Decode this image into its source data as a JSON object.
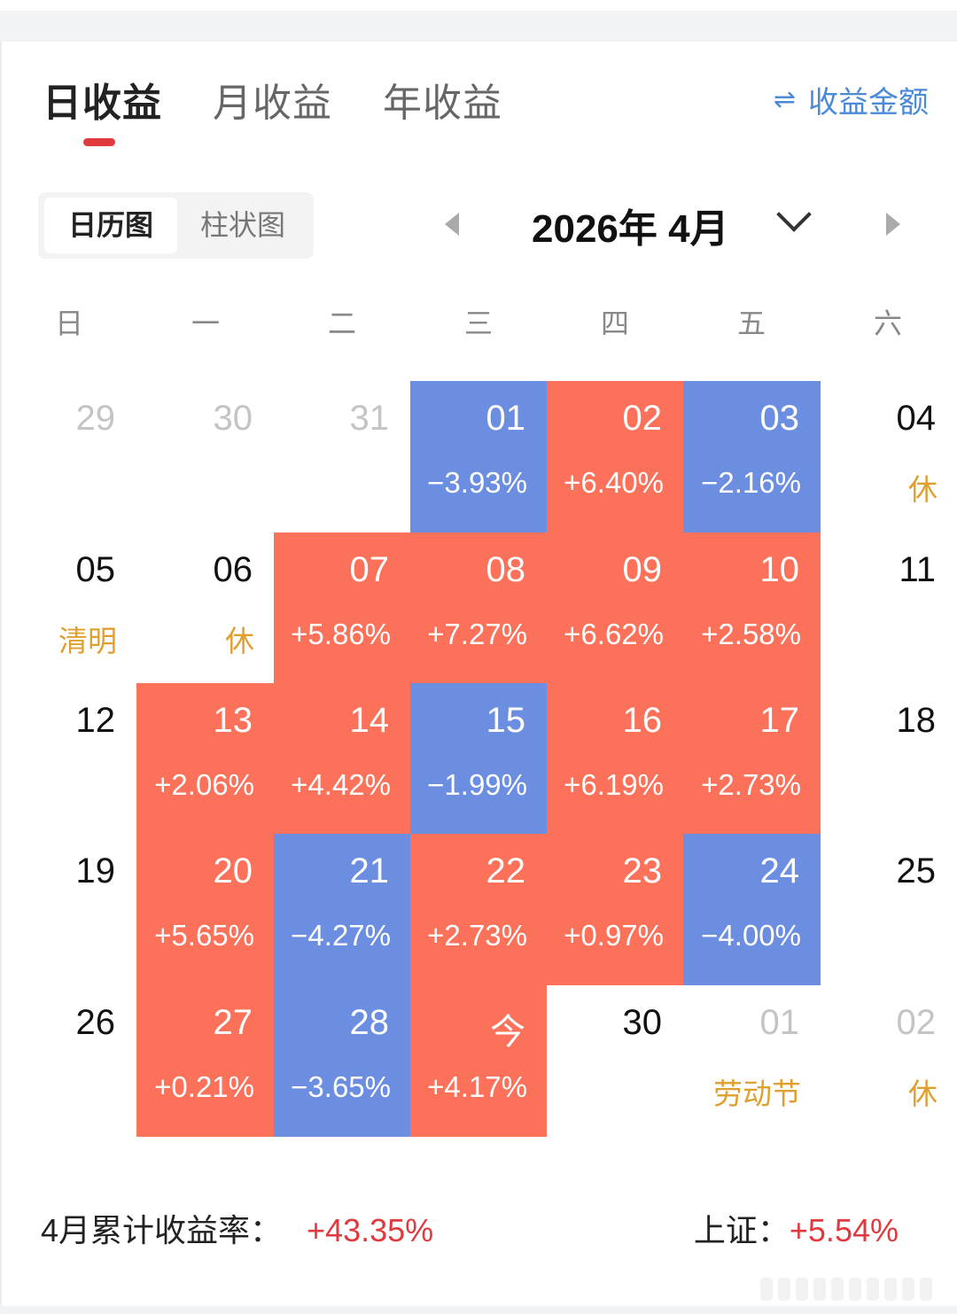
{
  "tabs": [
    {
      "label": "日收益",
      "active": true
    },
    {
      "label": "月收益",
      "active": false
    },
    {
      "label": "年收益",
      "active": false
    }
  ],
  "toggle_amount": {
    "icon": "swap-icon",
    "glyph": "⇌",
    "label": "收益金额"
  },
  "view_switch": {
    "calendar": "日历图",
    "bar": "柱状图",
    "selected": "日历图"
  },
  "month_nav": {
    "title": "2026年 4月",
    "prev_icon": "caret-left-icon",
    "next_icon": "caret-right-icon",
    "dropdown_icon": "chevron-down-icon"
  },
  "weekdays": [
    "日",
    "一",
    "二",
    "三",
    "四",
    "五",
    "六"
  ],
  "colors": {
    "gain": "#fb715a",
    "loss": "#6b8ee1",
    "holiday_text": "#e0a030",
    "accent_red": "#e03a3e",
    "link_blue": "#4a8ad8"
  },
  "calendar": [
    [
      {
        "day": "29",
        "type": "other",
        "sub": ""
      },
      {
        "day": "30",
        "type": "other",
        "sub": ""
      },
      {
        "day": "31",
        "type": "other",
        "sub": ""
      },
      {
        "day": "01",
        "type": "down",
        "sub": "−3.93%"
      },
      {
        "day": "02",
        "type": "up",
        "sub": "+6.40%"
      },
      {
        "day": "03",
        "type": "down",
        "sub": "−2.16%"
      },
      {
        "day": "04",
        "type": "plain",
        "sub": "休",
        "holiday": true
      }
    ],
    [
      {
        "day": "05",
        "type": "plain",
        "sub": "清明",
        "holiday": true
      },
      {
        "day": "06",
        "type": "plain",
        "sub": "休",
        "holiday": true
      },
      {
        "day": "07",
        "type": "up",
        "sub": "+5.86%"
      },
      {
        "day": "08",
        "type": "up",
        "sub": "+7.27%"
      },
      {
        "day": "09",
        "type": "up",
        "sub": "+6.62%"
      },
      {
        "day": "10",
        "type": "up",
        "sub": "+2.58%"
      },
      {
        "day": "11",
        "type": "plain",
        "sub": ""
      }
    ],
    [
      {
        "day": "12",
        "type": "plain",
        "sub": ""
      },
      {
        "day": "13",
        "type": "up",
        "sub": "+2.06%"
      },
      {
        "day": "14",
        "type": "up",
        "sub": "+4.42%"
      },
      {
        "day": "15",
        "type": "down",
        "sub": "−1.99%"
      },
      {
        "day": "16",
        "type": "up",
        "sub": "+6.19%"
      },
      {
        "day": "17",
        "type": "up",
        "sub": "+2.73%"
      },
      {
        "day": "18",
        "type": "plain",
        "sub": ""
      }
    ],
    [
      {
        "day": "19",
        "type": "plain",
        "sub": ""
      },
      {
        "day": "20",
        "type": "up",
        "sub": "+5.65%"
      },
      {
        "day": "21",
        "type": "down",
        "sub": "−4.27%"
      },
      {
        "day": "22",
        "type": "up",
        "sub": "+2.73%"
      },
      {
        "day": "23",
        "type": "up",
        "sub": "+0.97%"
      },
      {
        "day": "24",
        "type": "down",
        "sub": "−4.00%"
      },
      {
        "day": "25",
        "type": "plain",
        "sub": ""
      }
    ],
    [
      {
        "day": "26",
        "type": "plain",
        "sub": ""
      },
      {
        "day": "27",
        "type": "up",
        "sub": "+0.21%"
      },
      {
        "day": "28",
        "type": "down",
        "sub": "−3.65%"
      },
      {
        "day": "今",
        "type": "up",
        "sub": "+4.17%"
      },
      {
        "day": "30",
        "type": "plain",
        "sub": ""
      },
      {
        "day": "01",
        "type": "other",
        "sub": "劳动节",
        "holiday": true
      },
      {
        "day": "02",
        "type": "other",
        "sub": "休",
        "holiday": true
      }
    ]
  ],
  "summary": {
    "monthly_label": "4月累计收益率：",
    "monthly_value": "+43.35%",
    "index_label": "上证：",
    "index_value": "+5.54%"
  }
}
